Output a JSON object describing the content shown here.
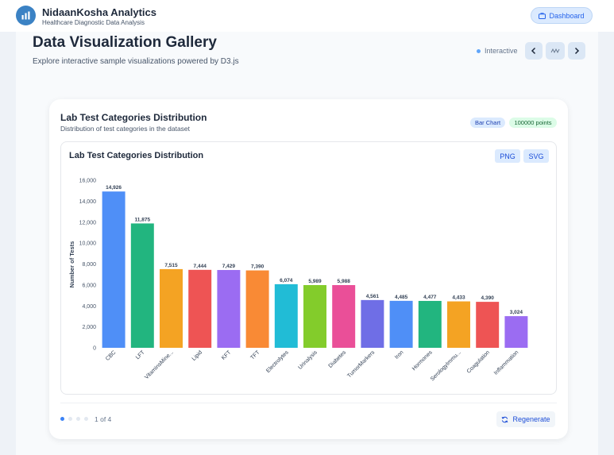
{
  "app": {
    "title": "NidaanKosha Analytics",
    "subtitle": "Healthcare Diagnostic Data Analysis",
    "dashboard_label": "Dashboard"
  },
  "header": {
    "title": "Data Visualization Gallery",
    "subtitle": "Explore interactive sample visualizations powered by D3.js",
    "interactive_label": "Interactive",
    "prev_icon": "chevron-left-icon",
    "mid_icon": "waveform-icon",
    "next_icon": "chevron-right-icon"
  },
  "card": {
    "title": "Lab Test Categories Distribution",
    "subtitle": "Distribution of test categories in the dataset",
    "type_badge": "Bar Chart",
    "points_badge": "100000 points",
    "export_png": "PNG",
    "export_svg": "SVG"
  },
  "footer": {
    "page_label": "1 of 4",
    "regenerate_label": "Regenerate",
    "page_count": 4,
    "active_page": 1
  },
  "colors": {
    "accent": "#3b82f6",
    "bars": [
      "#4f8ff7",
      "#22b57f",
      "#f4a323",
      "#ee5454",
      "#9b6cf2",
      "#f98a35",
      "#21bcd6",
      "#83cc2b",
      "#ea4f98",
      "#6f6ee6",
      "#4f8ff7",
      "#22b57f",
      "#f4a323",
      "#ee5454",
      "#9b6cf2"
    ]
  },
  "chart_data": {
    "type": "bar",
    "title": "Lab Test Categories Distribution",
    "xlabel": "",
    "ylabel": "Number of Tests",
    "ylim": [
      0,
      16000
    ],
    "yticks": [
      "0",
      "2,000",
      "4,000",
      "6,000",
      "8,000",
      "10,000",
      "12,000",
      "14,000",
      "16,000"
    ],
    "grid": false,
    "categories": [
      "CBC",
      "LFT",
      "VitaminsMine...",
      "Lipid",
      "KFT",
      "TFT",
      "Electrolytes",
      "Urinalysis",
      "Diabetes",
      "TumorMarkers",
      "Iron",
      "Hormones",
      "SerologyImmu...",
      "Coagulation",
      "Inflammation"
    ],
    "values": [
      14926,
      11875,
      7515,
      7444,
      7429,
      7390,
      6074,
      5989,
      5988,
      4561,
      4485,
      4477,
      4433,
      4390,
      3024
    ],
    "value_labels": [
      "14,926",
      "11,875",
      "7,515",
      "7,444",
      "7,429",
      "7,390",
      "6,074",
      "5,989",
      "5,988",
      "4,561",
      "4,485",
      "4,477",
      "4,433",
      "4,390",
      "3,024"
    ]
  }
}
